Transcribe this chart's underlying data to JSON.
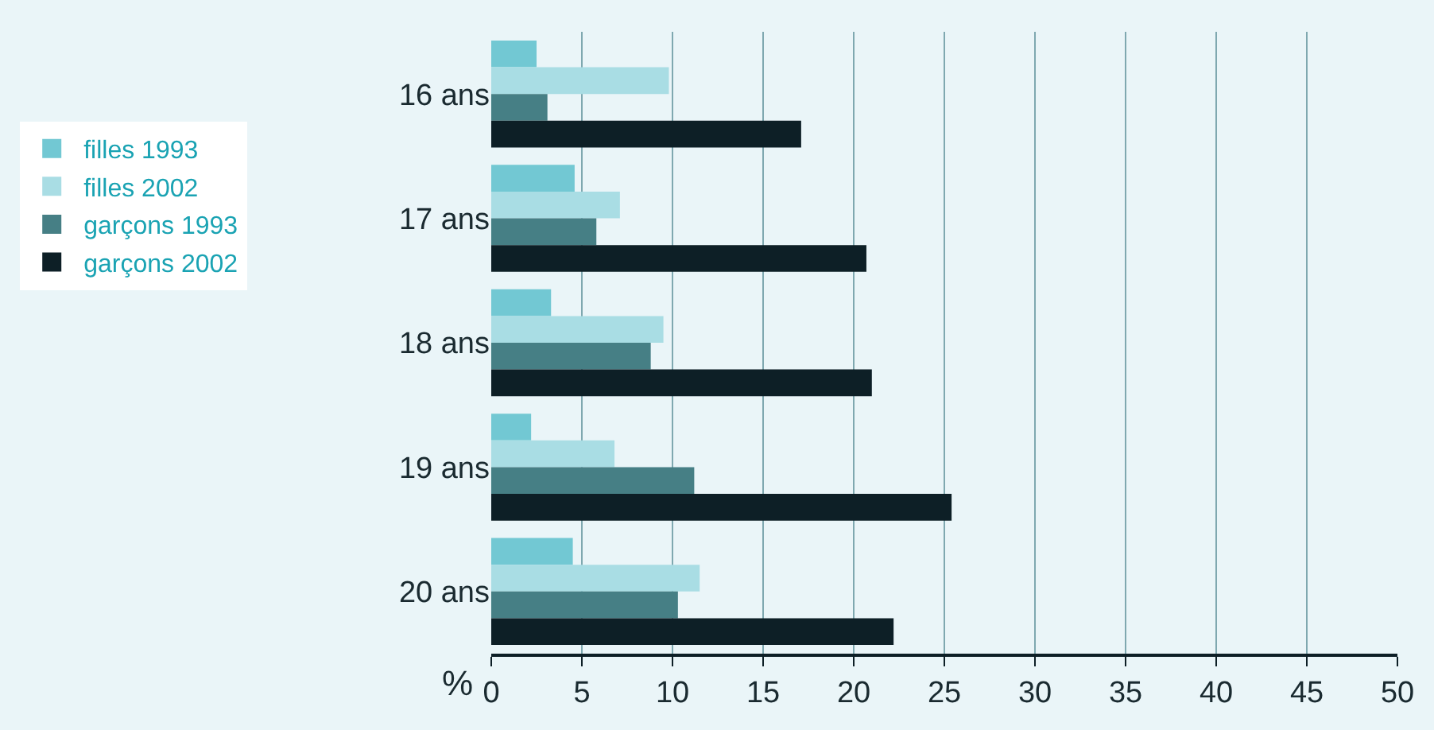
{
  "chart_data": {
    "type": "bar",
    "orientation": "horizontal",
    "xlabel": "%",
    "categories": [
      "16 ans",
      "17 ans",
      "18 ans",
      "19 ans",
      "20 ans"
    ],
    "series": [
      {
        "name": "filles 1993",
        "color": "#72c8d3",
        "values": [
          2.5,
          4.6,
          3.3,
          2.2,
          4.5
        ]
      },
      {
        "name": "filles 2002",
        "color": "#a9dde4",
        "values": [
          9.8,
          7.1,
          9.5,
          6.8,
          11.5
        ]
      },
      {
        "name": "garçons 1993",
        "color": "#467f85",
        "values": [
          3.1,
          5.8,
          8.8,
          11.2,
          10.3
        ]
      },
      {
        "name": "garçons 2002",
        "color": "#0d1f26",
        "values": [
          17.1,
          20.7,
          21.0,
          25.4,
          22.2
        ]
      }
    ],
    "xlim": [
      0,
      50
    ],
    "xticks": [
      0,
      5,
      10,
      15,
      20,
      25,
      30,
      35,
      40,
      45,
      50
    ],
    "grid": "x",
    "legend": "left"
  }
}
